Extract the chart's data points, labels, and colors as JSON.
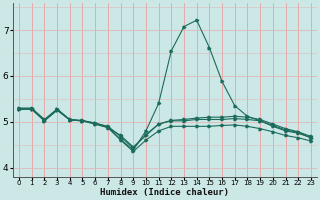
{
  "xlabel": "Humidex (Indice chaleur)",
  "background_color": "#cce8e6",
  "grid_color_v": "#e8a0a0",
  "grid_color_h": "#e0b8b8",
  "line_color": "#1a6b5a",
  "xlim": [
    -0.5,
    23.5
  ],
  "ylim": [
    3.8,
    7.6
  ],
  "xticks": [
    0,
    1,
    2,
    3,
    4,
    5,
    6,
    7,
    8,
    9,
    10,
    11,
    12,
    13,
    14,
    15,
    16,
    17,
    18,
    19,
    20,
    21,
    22,
    23
  ],
  "yticks": [
    4,
    5,
    6,
    7
  ],
  "series": [
    {
      "x": [
        0,
        1,
        2,
        3,
        4,
        5,
        6,
        7,
        8,
        9,
        10,
        11,
        12,
        13,
        14,
        15,
        16,
        17,
        18,
        19,
        20,
        21,
        22,
        23
      ],
      "y": [
        5.28,
        5.28,
        5.02,
        5.27,
        5.04,
        5.02,
        4.97,
        4.9,
        4.68,
        4.42,
        4.72,
        4.95,
        5.03,
        5.05,
        5.08,
        5.1,
        5.1,
        5.12,
        5.1,
        5.05,
        4.95,
        4.85,
        4.78,
        4.68
      ]
    },
    {
      "x": [
        0,
        1,
        2,
        3,
        4,
        5,
        6,
        7,
        8,
        9,
        10,
        11,
        12,
        13,
        14,
        15,
        16,
        17,
        18,
        19,
        20,
        21,
        22,
        23
      ],
      "y": [
        5.3,
        5.3,
        5.05,
        5.28,
        5.05,
        5.03,
        4.97,
        4.88,
        4.62,
        4.38,
        4.8,
        5.4,
        6.55,
        7.08,
        7.22,
        6.62,
        5.88,
        5.35,
        5.12,
        5.02,
        4.9,
        4.8,
        4.75,
        4.65
      ]
    },
    {
      "x": [
        0,
        1,
        2,
        3,
        4,
        5,
        6,
        7,
        8,
        9,
        10,
        11,
        12,
        13,
        14,
        15,
        16,
        17,
        18,
        19,
        20,
        21,
        22,
        23
      ],
      "y": [
        5.28,
        5.28,
        5.03,
        5.26,
        5.04,
        5.02,
        4.95,
        4.88,
        4.7,
        4.45,
        4.7,
        4.95,
        5.02,
        5.02,
        5.05,
        5.05,
        5.05,
        5.07,
        5.05,
        5.02,
        4.92,
        4.82,
        4.77,
        4.65
      ]
    },
    {
      "x": [
        0,
        1,
        2,
        3,
        4,
        5,
        6,
        7,
        8,
        9,
        10,
        11,
        12,
        13,
        14,
        15,
        16,
        17,
        18,
        19,
        20,
        21,
        22,
        23
      ],
      "y": [
        5.27,
        5.27,
        5.02,
        5.25,
        5.04,
        5.02,
        4.95,
        4.87,
        4.6,
        4.35,
        4.6,
        4.8,
        4.9,
        4.9,
        4.9,
        4.9,
        4.92,
        4.93,
        4.9,
        4.85,
        4.78,
        4.7,
        4.65,
        4.58
      ]
    }
  ]
}
